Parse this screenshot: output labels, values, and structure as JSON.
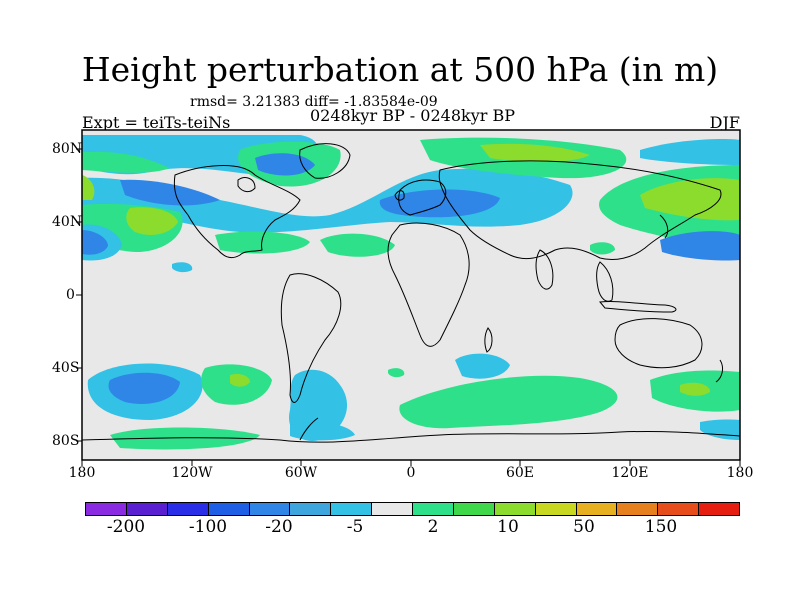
{
  "title": "Height perturbation at 500 hPa (in m)",
  "subtitle_stats": "rmsd= 3.21383 diff= -1.83584e-09",
  "subtitle_period": "0248kyr BP - 0248kyr BP",
  "subtitle_expt": "Expt = teiTs-teiNs",
  "subtitle_season": "DJF",
  "lat_labels": [
    "80N",
    "40N",
    "0",
    "40S",
    "80S"
  ],
  "lon_labels": [
    "180",
    "120W",
    "60W",
    "0",
    "60E",
    "120E",
    "180"
  ],
  "colorbar": {
    "colors": [
      "#8a2be2",
      "#5a1fd0",
      "#2a2ee6",
      "#1f5fe6",
      "#2f86e6",
      "#3fa5dd",
      "#33c1e6",
      "#e8e8e8",
      "#2ee08a",
      "#3fd84a",
      "#8cdc2e",
      "#c8d820",
      "#e6b020",
      "#e6801e",
      "#e64d1a",
      "#e61e12"
    ],
    "labels": [
      "-200",
      "-100",
      "-20",
      "-5",
      "2",
      "10",
      "50",
      "150"
    ]
  },
  "colors": {
    "background_field": "#e8e8e8",
    "coastline": "#000000"
  }
}
